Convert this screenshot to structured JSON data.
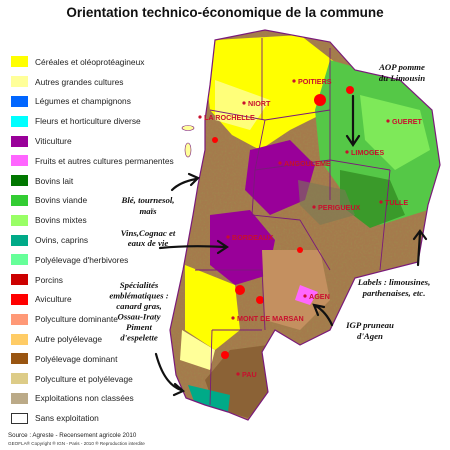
{
  "title": "Orientation technico-économique de la commune",
  "legend": [
    {
      "label": "Céréales et oléoprotéagineux",
      "color": "#ffff00"
    },
    {
      "label": "Autres grandes cultures",
      "color": "#ffff99"
    },
    {
      "label": "Légumes et champignons",
      "color": "#0066ff"
    },
    {
      "label": "Fleurs et horticulture diverse",
      "color": "#00ffff"
    },
    {
      "label": "Viticulture",
      "color": "#990099"
    },
    {
      "label": "Fruits et autres cultures permanentes",
      "color": "#ff66ff"
    },
    {
      "label": "Bovins lait",
      "color": "#007700"
    },
    {
      "label": "Bovins viande",
      "color": "#33cc33"
    },
    {
      "label": "Bovins mixtes",
      "color": "#99ff66"
    },
    {
      "label": "Ovins, caprins",
      "color": "#00aa88"
    },
    {
      "label": "Polyélevage d'herbivores",
      "color": "#66ff99"
    },
    {
      "label": "Porcins",
      "color": "#cc0000"
    },
    {
      "label": "Aviculture",
      "color": "#ff0000"
    },
    {
      "label": "Polyculture dominante",
      "color": "#ff9977"
    },
    {
      "label": "Autre polyélevage",
      "color": "#ffcc66"
    },
    {
      "label": "Polyélevage dominant",
      "color": "#995511"
    },
    {
      "label": "Polyculture et polyélevage",
      "color": "#ddcc88"
    },
    {
      "label": "Exploitations non classées",
      "color": "#bbaa88"
    },
    {
      "label": "Sans exploitation",
      "color": "#ffffff"
    }
  ],
  "cities": [
    {
      "name": "POITIERS"
    },
    {
      "name": "NIORT"
    },
    {
      "name": "LA ROCHELLE"
    },
    {
      "name": "GUERET"
    },
    {
      "name": "LIMOGES"
    },
    {
      "name": "ANGOULEME"
    },
    {
      "name": "PERIGUEUX"
    },
    {
      "name": "TULLE"
    },
    {
      "name": "BORDEAUX"
    },
    {
      "name": "AGEN"
    },
    {
      "name": "MONT DE MARSAN"
    },
    {
      "name": "PAU"
    }
  ],
  "annotations": {
    "aop_pomme": [
      "AOP pomme",
      "du Limousin"
    ],
    "ble": [
      "Blé, tournesol,",
      "maïs"
    ],
    "vins": [
      "Vins,Cognac et",
      "eaux de vie"
    ],
    "labels": [
      "Labels : limousines,",
      "parthenaises, etc."
    ],
    "specialites": [
      "Spécialités",
      "emblématiques :",
      "canard gras,",
      "Ossau-Iraty",
      "Piment",
      "d'espelette"
    ],
    "igp": [
      "IGP pruneau",
      "d'Agen"
    ]
  },
  "source": "Source : Agreste - Recensement agricole 2010",
  "copyright": "GEOFLA® Copyright ® IGN - Paris - 2010 ® Reproduction interdite"
}
